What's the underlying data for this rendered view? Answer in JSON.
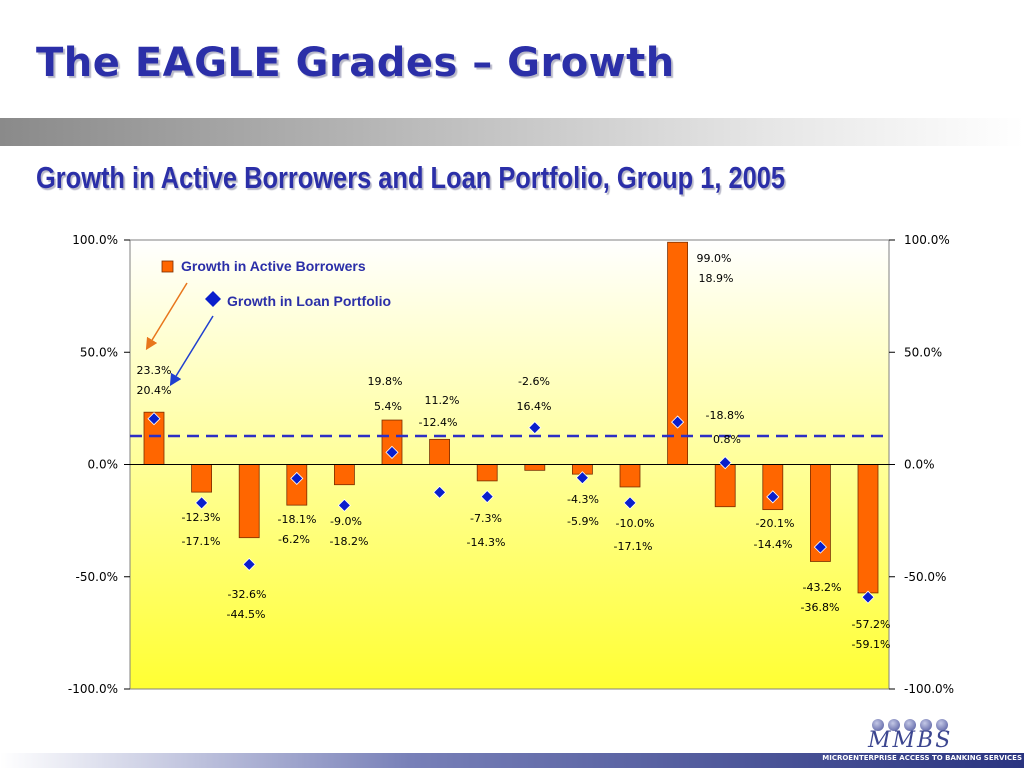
{
  "slide": {
    "title": "The EAGLE Grades – Growth",
    "subtitle": "Growth in Active Borrowers and Loan Portfolio, Group 1, 2005",
    "logo_text": "MMBS",
    "footer_text": "MICROENTERPRISE ACCESS TO BANKING SERVICES"
  },
  "colors": {
    "title": "#2b2fa8",
    "bar": "#ff6600",
    "bar_stroke": "#7a2e00",
    "diamond": "#0a1fcc",
    "dashed_line": "#2d2fc4",
    "plot_top": "#ffffff",
    "plot_bottom": "#ffff33"
  },
  "chart_data": {
    "type": "bar",
    "title": "",
    "xlabel": "",
    "ylabel": "",
    "ylim": [
      -100,
      100
    ],
    "yticks": [
      100,
      50,
      0,
      -50,
      -100
    ],
    "ytick_labels": [
      "100.0%",
      "50.0%",
      "0.0%",
      "-50.0%",
      "-100.0%"
    ],
    "secondary_axis": true,
    "grid": false,
    "legend_position": "top-left",
    "reference_line": 12.7,
    "categories": [
      "",
      "",
      "",
      "",
      "",
      "",
      "",
      "",
      "",
      "",
      "",
      "",
      "",
      "",
      "",
      ""
    ],
    "series": [
      {
        "name": "Growth in Active Borrowers",
        "type": "bar",
        "values": [
          23.3,
          -12.3,
          -32.6,
          -18.1,
          -9.0,
          19.8,
          11.2,
          -7.3,
          -2.6,
          -4.3,
          -10.0,
          99.0,
          -18.8,
          -20.1,
          -43.2,
          -57.2
        ],
        "labels": [
          "23.3%",
          "-12.3%",
          "-32.6%",
          "-18.1%",
          "-9.0%",
          "19.8%",
          "11.2%",
          "-7.3%",
          "-2.6%",
          "-4.3%",
          "-10.0%",
          "99.0%",
          "-18.8%",
          "-20.1%",
          "-43.2%",
          "-57.2%"
        ]
      },
      {
        "name": "Growth in Loan Portfolio",
        "type": "scatter",
        "marker": "diamond",
        "values": [
          20.4,
          -17.1,
          -44.5,
          -6.2,
          -18.2,
          5.4,
          -12.4,
          -14.3,
          16.4,
          -5.9,
          -17.1,
          18.9,
          0.8,
          -14.4,
          -36.8,
          -59.1
        ],
        "labels": [
          "20.4%",
          "-17.1%",
          "-44.5%",
          "-6.2%",
          "-18.2%",
          "5.4%",
          "-12.4%",
          "-14.3%",
          "16.4%",
          "-5.9%",
          "-17.1%",
          "18.9%",
          "0.8%",
          "-14.4%",
          "-36.8%",
          "-59.1%"
        ]
      }
    ]
  }
}
